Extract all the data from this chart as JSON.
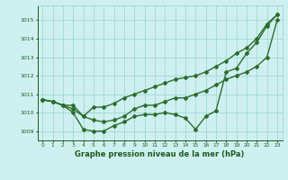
{
  "title": "Graphe pression niveau de la mer (hPa)",
  "hours": [
    0,
    1,
    2,
    3,
    4,
    5,
    6,
    7,
    8,
    9,
    10,
    11,
    12,
    13,
    14,
    15,
    16,
    17,
    18,
    19,
    20,
    21,
    22,
    23
  ],
  "line1": [
    1010.7,
    1010.6,
    1010.4,
    1010.4,
    1009.8,
    1010.3,
    1010.3,
    1010.5,
    1010.8,
    1011.0,
    1011.2,
    1011.4,
    1011.6,
    1011.8,
    1011.9,
    1012.0,
    1012.2,
    1012.5,
    1012.8,
    1013.2,
    1013.5,
    1014.0,
    1014.8,
    1015.3
  ],
  "line2": [
    1010.7,
    1010.6,
    1010.4,
    1010.2,
    1009.8,
    1009.6,
    1009.5,
    1009.6,
    1009.8,
    1010.2,
    1010.4,
    1010.4,
    1010.6,
    1010.8,
    1010.8,
    1011.0,
    1011.2,
    1011.5,
    1011.8,
    1012.0,
    1012.2,
    1012.5,
    1013.0,
    1015.0
  ],
  "line3": [
    1010.7,
    1010.6,
    1010.4,
    1010.0,
    1009.1,
    1009.0,
    1009.0,
    1009.3,
    1009.5,
    1009.8,
    1009.9,
    1009.9,
    1010.0,
    1009.9,
    1009.7,
    1009.1,
    1009.8,
    1010.1,
    1012.2,
    1012.4,
    1013.2,
    1013.8,
    1014.7,
    1015.3
  ],
  "bg_color": "#cff0f0",
  "grid_color": "#a0d8d8",
  "line_color": "#2a6e2a",
  "tick_color": "#1a5c1a",
  "title_color": "#1a5c1a",
  "ylim": [
    1008.5,
    1015.8
  ],
  "yticks": [
    1009,
    1010,
    1011,
    1012,
    1013,
    1014,
    1015
  ],
  "markersize": 2.0,
  "linewidth": 1.0
}
